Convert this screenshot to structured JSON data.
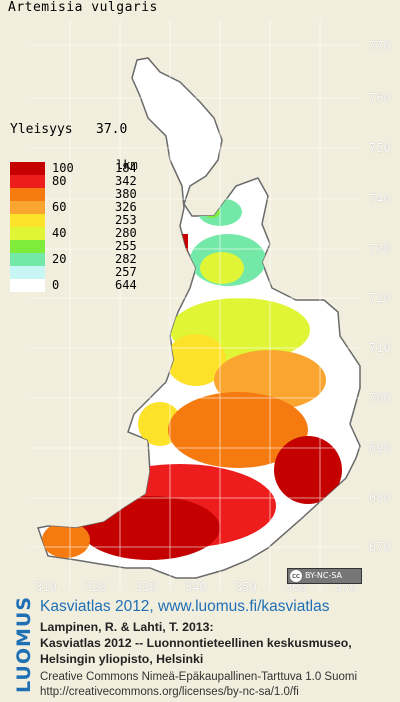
{
  "title": "Artemisia vulgaris",
  "frequency": {
    "label": "Yleisyys",
    "value": "37.0"
  },
  "legend": {
    "count_header": "lkm",
    "items": [
      {
        "pct": "100",
        "count": "184",
        "color": "#c40000"
      },
      {
        "pct": "80",
        "count": "342",
        "color": "#ee1d1d"
      },
      {
        "pct": "",
        "count": "380",
        "color": "#f57a10"
      },
      {
        "pct": "60",
        "count": "326",
        "color": "#fba531"
      },
      {
        "pct": "",
        "count": "253",
        "color": "#fde22a"
      },
      {
        "pct": "40",
        "count": "280",
        "color": "#dff536"
      },
      {
        "pct": "",
        "count": "255",
        "color": "#7fec3b"
      },
      {
        "pct": "20",
        "count": "282",
        "color": "#74e9a7"
      },
      {
        "pct": "",
        "count": "257",
        "color": "#c7f6f4"
      },
      {
        "pct": "0",
        "count": "644",
        "color": "#ffffff"
      }
    ]
  },
  "y_ticks": [
    "770",
    "760",
    "750",
    "740",
    "730",
    "720",
    "710",
    "700",
    "690",
    "680",
    "670"
  ],
  "x_ticks": [
    "310",
    "320",
    "330",
    "340",
    "350",
    "360",
    "370"
  ],
  "license_badge": "BY-NC-SA",
  "brand": "LUOMUS",
  "credits": {
    "heading": "Kasviatlas 2012, www.luomus.fi/kasviatlas",
    "line1": "Lampinen, R. & Lahti, T. 2013:",
    "line2": "Kasviatlas 2012 -- Luonnontieteellinen keskusmuseo,",
    "line3": "Helsingin yliopisto, Helsinki",
    "license1": "Creative Commons Nimeä-Epäkaupallinen-Tarttuva 1.0 Suomi",
    "license2": "http://creativecommons.org/licenses/by-nc-sa/1.0/fi"
  }
}
